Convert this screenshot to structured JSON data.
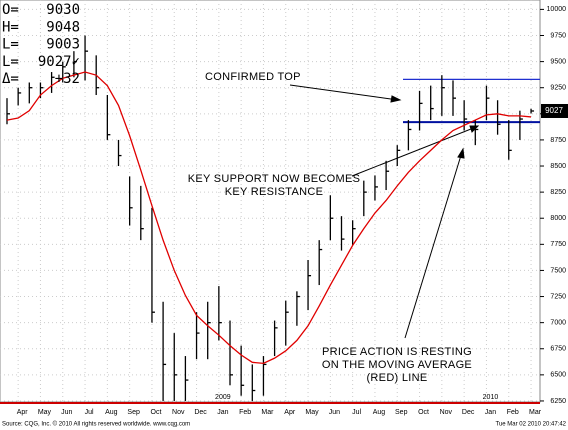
{
  "chart_data": {
    "type": "ohlc",
    "categories": [
      null,
      "Apr",
      null,
      "May",
      null,
      "Jun",
      null,
      "Jul",
      null,
      "Aug",
      null,
      "Sep",
      null,
      "Oct",
      null,
      "Nov",
      null,
      "Dec",
      null,
      "Jan",
      null,
      "Feb",
      null,
      "Mar",
      null,
      "Apr",
      null,
      "May",
      null,
      "Jun",
      null,
      "Jul",
      null,
      "Aug",
      null,
      "Sep",
      null,
      "Oct",
      null,
      "Nov",
      null,
      "Dec",
      null,
      "Jan",
      null,
      "Feb",
      null,
      "Mar"
    ],
    "year_labels": [
      null,
      null,
      null,
      null,
      null,
      null,
      null,
      null,
      null,
      null,
      null,
      null,
      null,
      null,
      null,
      null,
      null,
      null,
      null,
      "2009",
      null,
      null,
      null,
      null,
      null,
      null,
      null,
      null,
      null,
      null,
      null,
      null,
      null,
      null,
      null,
      null,
      null,
      null,
      null,
      null,
      null,
      null,
      null,
      "2010",
      null,
      null,
      null,
      null
    ],
    "high": [
      9150,
      9250,
      9300,
      9300,
      9400,
      9500,
      9600,
      9750,
      9560,
      9180,
      8750,
      8400,
      8310,
      8100,
      7200,
      6900,
      6680,
      7100,
      7200,
      7350,
      7020,
      6780,
      6600,
      6680,
      7020,
      7210,
      7300,
      7600,
      7790,
      8220,
      8020,
      7980,
      8360,
      8410,
      8550,
      8700,
      8940,
      9220,
      9270,
      9370,
      9320,
      9130,
      8940,
      9270,
      9130,
      8940,
      9030,
      9048
    ],
    "low": [
      8900,
      9080,
      9100,
      9150,
      9200,
      9300,
      9350,
      9320,
      9180,
      8750,
      8500,
      7930,
      7790,
      7000,
      6250,
      6250,
      6250,
      6650,
      6650,
      6830,
      6400,
      6300,
      6250,
      6300,
      6680,
      6780,
      6970,
      7120,
      7360,
      7790,
      7690,
      7740,
      8020,
      8170,
      8270,
      8500,
      8650,
      8840,
      8940,
      8980,
      8980,
      8840,
      8700,
      8940,
      8800,
      8560,
      8750,
      9003
    ],
    "close": [
      9000,
      9200,
      9250,
      9250,
      9350,
      9450,
      9500,
      9600,
      9250,
      8800,
      8600,
      8100,
      7900,
      7100,
      6600,
      6500,
      6450,
      6900,
      7000,
      7000,
      6500,
      6400,
      6350,
      6600,
      6950,
      7100,
      7250,
      7450,
      7700,
      8000,
      7800,
      7900,
      8250,
      8300,
      8450,
      8650,
      8850,
      9100,
      9050,
      9250,
      9150,
      8950,
      8850,
      9150,
      8900,
      8650,
      8950,
      9027
    ],
    "bar_color": "#000000",
    "moving_average": {
      "color": "#e00000",
      "values": [
        8940,
        8960,
        9030,
        9180,
        9270,
        9340,
        9370,
        9400,
        9370,
        9270,
        9080,
        8790,
        8460,
        8120,
        7790,
        7500,
        7260,
        7070,
        6970,
        6880,
        6780,
        6690,
        6620,
        6610,
        6660,
        6730,
        6830,
        6970,
        7160,
        7360,
        7550,
        7740,
        7900,
        8050,
        8170,
        8310,
        8440,
        8550,
        8650,
        8750,
        8840,
        8890,
        8940,
        8990,
        9000,
        8980,
        8980,
        8970
      ]
    },
    "levels": [
      {
        "value": 9330,
        "color": "#2030d0"
      },
      {
        "value": 8920,
        "color": "#0010a0"
      }
    ],
    "last_price": 9027,
    "ylim": [
      6240,
      10090
    ],
    "yticks": [
      6250,
      6500,
      6750,
      7000,
      7250,
      7500,
      7750,
      8000,
      8250,
      8500,
      8750,
      9000,
      9250,
      9500,
      9750,
      10000
    ],
    "grid": true,
    "quote": [
      [
        "O=",
        "9030"
      ],
      [
        "H=",
        "9048"
      ],
      [
        "L=",
        "9003"
      ],
      [
        "L=",
        "9027✓"
      ],
      [
        "Δ=",
        "+32"
      ]
    ],
    "annotations": [
      [
        "CONFIRMED TOP"
      ],
      [
        "KEY SUPPORT NOW BECOMES",
        "KEY RESISTANCE"
      ],
      [
        "PRICE ACTION IS RESTING",
        "ON THE MOVING AVERAGE",
        "(RED) LINE"
      ]
    ],
    "source": "Source: CQG, Inc. © 2010 All rights reserved worldwide. www.cqg.com",
    "timestamp": "Tue Mar 02 2010 20:47:42"
  }
}
